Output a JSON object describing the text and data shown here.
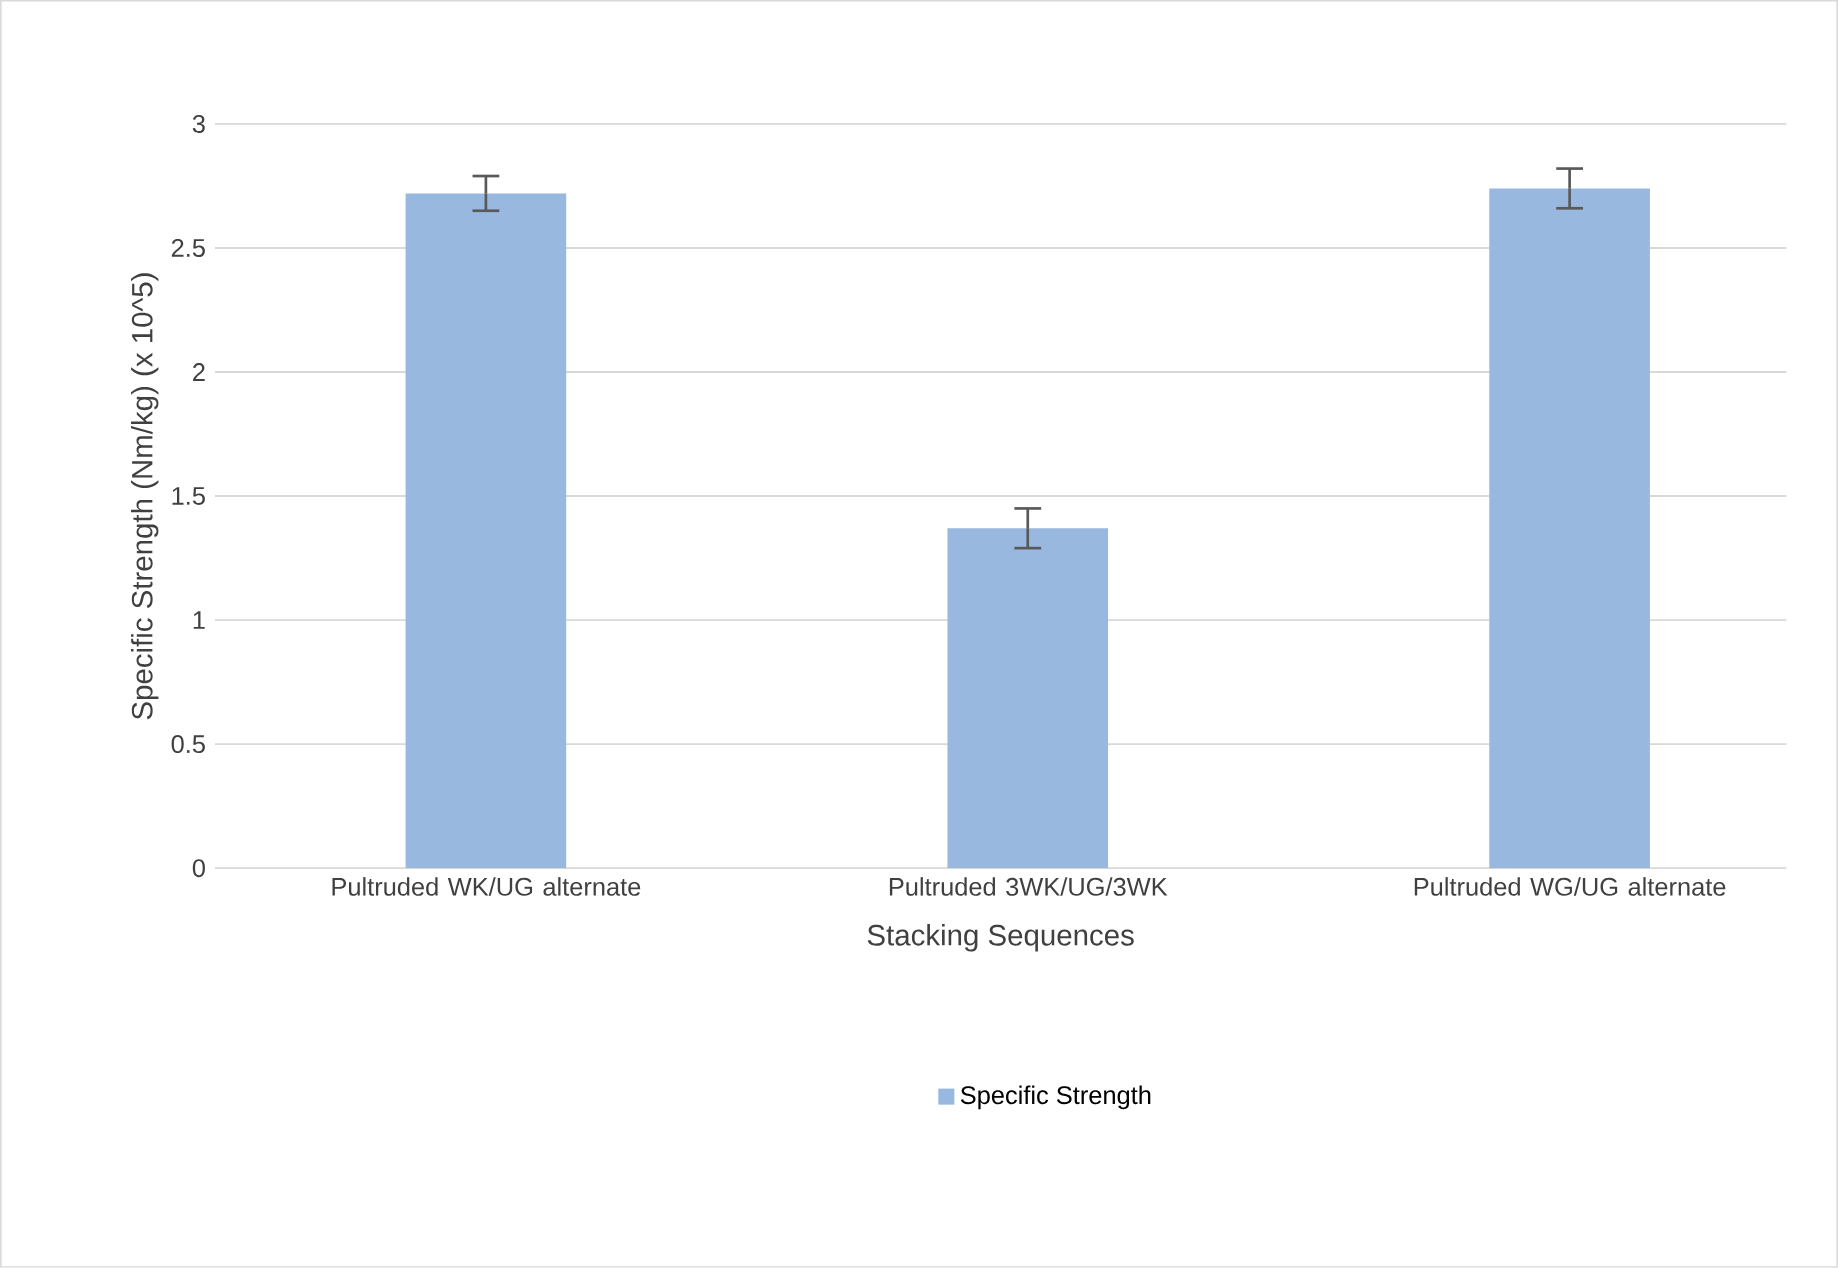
{
  "chart_data": {
    "type": "bar",
    "categories": [
      "Pultruded WK/UG alternate",
      "Pultruded 3WK/UG/3WK",
      "Pultruded WG/UG alternate"
    ],
    "series": [
      {
        "name": "Specific Strength",
        "color": "#98b8df",
        "values": [
          2.72,
          1.37,
          2.74
        ],
        "errors": [
          0.07,
          0.08,
          0.08
        ]
      }
    ],
    "xlabel": "Stacking Sequences",
    "ylabel": "Specific Strength (Nm/kg) (x 10^5)",
    "ylim": [
      0,
      3
    ],
    "yticks": [
      0,
      0.5,
      1,
      1.5,
      2,
      2.5,
      3
    ],
    "grid": "y",
    "legend": "bottom"
  }
}
